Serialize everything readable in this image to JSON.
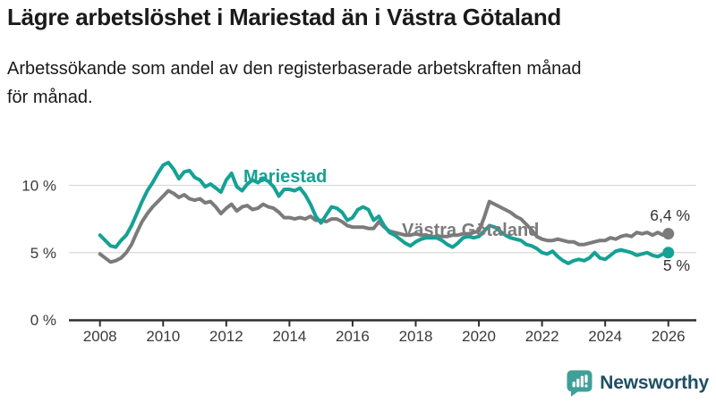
{
  "header": {
    "title": "Lägre arbetslöshet i Mariestad än i Västra Götaland",
    "subtitle_lines": [
      "Arbetssökande som andel av den registerbaserade arbetskraften månad",
      "för månad."
    ]
  },
  "chart_data": {
    "type": "line",
    "title": "Lägre arbetslöshet i Mariestad än i Västra Götaland",
    "subtitle": "Arbetssökande som andel av den registerbaserade arbetskraften månad för månad.",
    "x_unit": "year",
    "start_year": 2008,
    "step_months": 2,
    "xlim": [
      2008,
      2026.9
    ],
    "ylim": [
      0,
      12.5
    ],
    "grid": "horizontal",
    "x_ticks": [
      "2008",
      "2010",
      "2012",
      "2014",
      "2016",
      "2018",
      "2020",
      "2022",
      "2024",
      "2026"
    ],
    "y_ticks": [
      {
        "value": 0,
        "label": "0 %"
      },
      {
        "value": 5,
        "label": "5 %"
      },
      {
        "value": 10,
        "label": "10 %"
      }
    ],
    "series": [
      {
        "name": "Västra Götaland",
        "color": "#7b7b7b",
        "end_label": "6,4 %",
        "latest_value": 6.4,
        "values": [
          4.9,
          4.6,
          4.3,
          4.4,
          4.6,
          5.0,
          5.6,
          6.5,
          7.3,
          7.9,
          8.4,
          8.8,
          9.2,
          9.6,
          9.4,
          9.1,
          9.3,
          9.0,
          8.9,
          9.0,
          8.7,
          8.8,
          8.4,
          7.9,
          8.3,
          8.6,
          8.1,
          8.4,
          8.5,
          8.2,
          8.3,
          8.6,
          8.4,
          8.3,
          8.0,
          7.6,
          7.6,
          7.5,
          7.6,
          7.5,
          7.7,
          7.4,
          7.4,
          7.3,
          7.5,
          7.5,
          7.3,
          7.0,
          6.9,
          6.9,
          6.9,
          6.8,
          6.8,
          7.3,
          6.9,
          6.6,
          6.5,
          6.4,
          6.3,
          6.3,
          6.4,
          6.3,
          6.3,
          6.2,
          6.2,
          6.2,
          6.2,
          6.3,
          6.3,
          6.4,
          6.4,
          6.5,
          6.6,
          7.6,
          8.8,
          8.6,
          8.4,
          8.2,
          8.0,
          7.7,
          7.5,
          7.1,
          6.7,
          6.2,
          6.0,
          5.9,
          5.9,
          6.0,
          5.9,
          5.8,
          5.8,
          5.6,
          5.6,
          5.7,
          5.8,
          5.9,
          5.9,
          6.1,
          6.0,
          6.2,
          6.3,
          6.2,
          6.5,
          6.4,
          6.5,
          6.3,
          6.5,
          6.3,
          6.4
        ]
      },
      {
        "name": "Mariestad",
        "color": "#16a195",
        "end_label": "5 %",
        "latest_value": 5.0,
        "values": [
          6.3,
          5.9,
          5.5,
          5.4,
          5.9,
          6.3,
          7.0,
          7.9,
          8.8,
          9.6,
          10.2,
          10.9,
          11.5,
          11.7,
          11.2,
          10.5,
          11.0,
          11.1,
          10.6,
          10.4,
          9.9,
          10.1,
          9.8,
          9.5,
          10.4,
          10.9,
          9.9,
          9.6,
          10.1,
          10.4,
          10.2,
          10.5,
          10.3,
          9.9,
          9.2,
          9.7,
          9.7,
          9.6,
          9.8,
          9.3,
          8.6,
          7.7,
          7.2,
          7.8,
          8.4,
          8.3,
          8.0,
          7.4,
          7.6,
          8.2,
          8.4,
          8.2,
          7.4,
          7.7,
          7.0,
          6.5,
          6.3,
          6.0,
          5.7,
          5.5,
          5.8,
          6.0,
          6.1,
          6.1,
          6.1,
          5.9,
          5.6,
          5.4,
          5.7,
          6.1,
          6.2,
          6.1,
          6.2,
          6.6,
          7.0,
          6.9,
          6.6,
          6.3,
          6.1,
          6.0,
          5.9,
          5.6,
          5.5,
          5.3,
          5.0,
          4.9,
          5.1,
          4.7,
          4.4,
          4.2,
          4.4,
          4.5,
          4.4,
          4.6,
          5.0,
          4.6,
          4.5,
          4.8,
          5.1,
          5.2,
          5.1,
          5.0,
          4.8,
          4.9,
          5.0,
          4.8,
          4.7,
          4.9,
          5.0
        ]
      }
    ]
  },
  "colors": {
    "axis": "#2f2f2f",
    "grid": "#d9d9d9",
    "tick_text": "#3a3a3a",
    "end_label_text": "#333333"
  },
  "branding": {
    "logo_text": "Newsworthy",
    "logo_icon": "newsworthy-speech-bubble-chart-icon",
    "icon_color": "#3f9f99",
    "text_color": "#1d4f63"
  }
}
